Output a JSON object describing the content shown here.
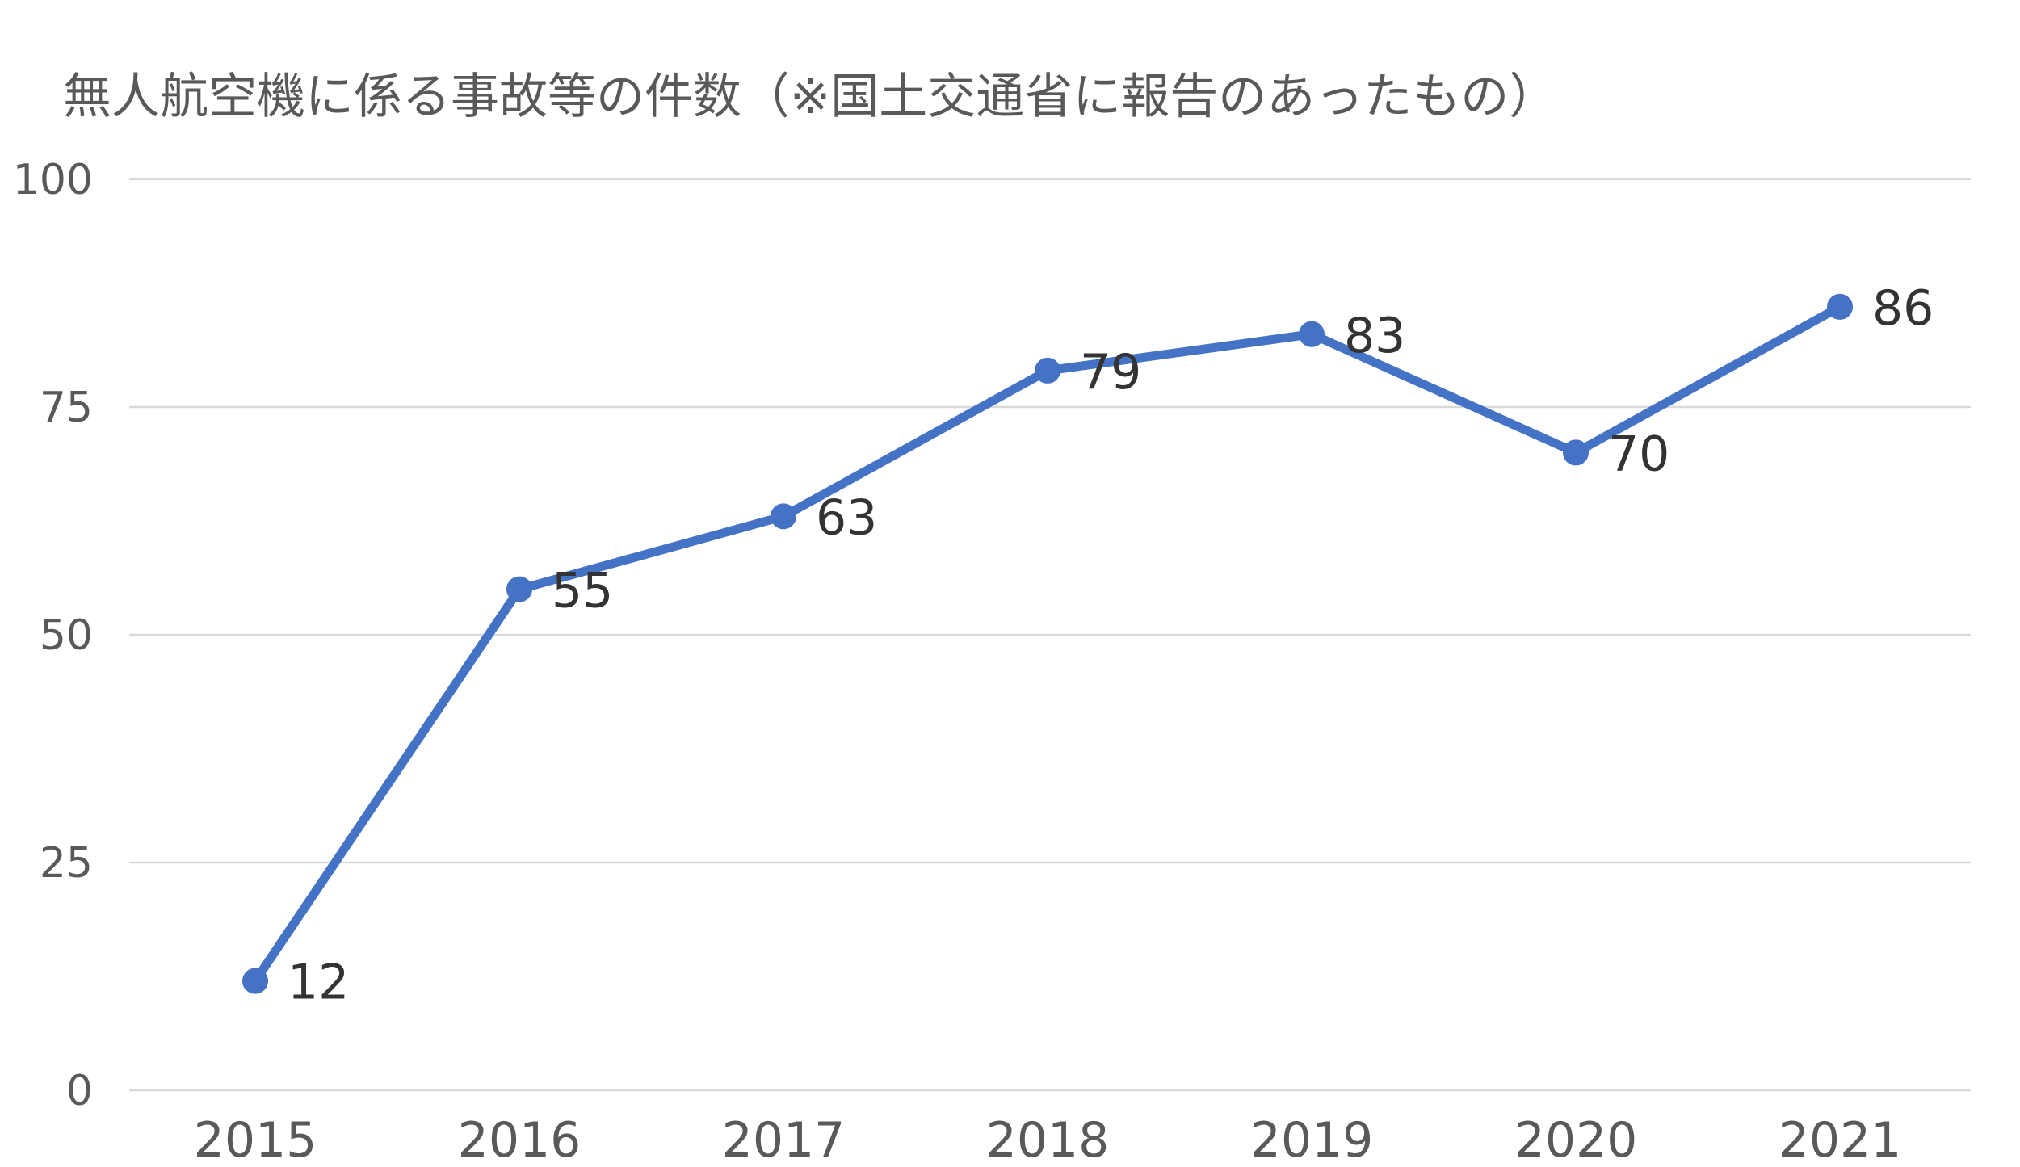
{
  "chart_data": {
    "type": "line",
    "title": "無人航空機に係る事故等の件数（※国土交通省に報告のあったもの）",
    "categories": [
      "2015",
      "2016",
      "2017",
      "2018",
      "2019",
      "2020",
      "2021"
    ],
    "series": [
      {
        "values": [
          12,
          55,
          63,
          79,
          83,
          70,
          86
        ],
        "color": "#4472c4",
        "data_labels": [
          "12",
          "55",
          "63",
          "79",
          "83",
          "70",
          "86"
        ]
      }
    ],
    "y_ticks": [
      "0",
      "25",
      "50",
      "75",
      "100"
    ],
    "ylim": [
      0,
      100
    ],
    "grid": "horizontal",
    "legend": "none"
  }
}
